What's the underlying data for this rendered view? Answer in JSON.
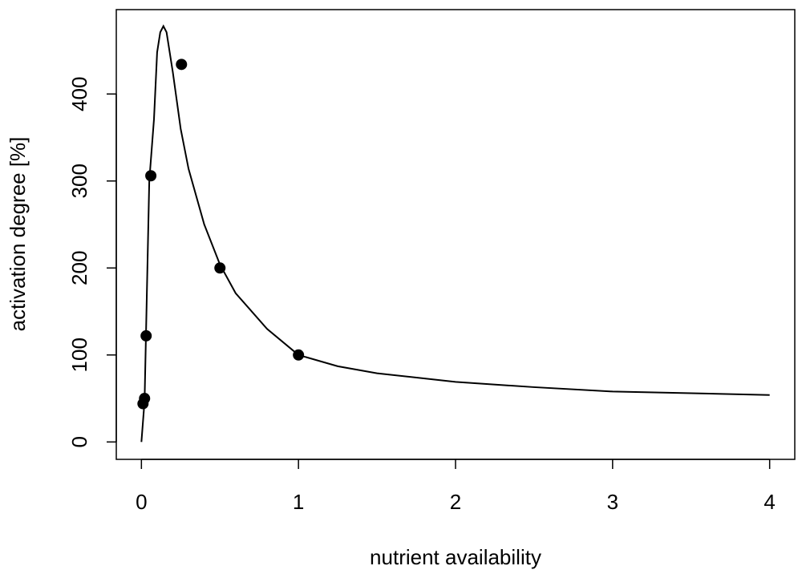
{
  "chart_data": {
    "type": "scatter",
    "x_label": "nutrient availability",
    "y_label": "activation degree [%]",
    "xlim": [
      -0.16,
      4.16
    ],
    "ylim": [
      -20,
      497
    ],
    "xticks": [
      0,
      1,
      2,
      3,
      4
    ],
    "yticks": [
      0,
      100,
      200,
      300,
      400
    ],
    "series": [
      {
        "type": "scatter",
        "color": "#000000",
        "x": [
          0.01,
          0.02,
          0.03,
          0.06,
          0.255,
          0.5,
          1
        ],
        "values": [
          44,
          50,
          122,
          306,
          434,
          200,
          100
        ]
      },
      {
        "type": "line",
        "color": "#000000",
        "x": [
          0,
          0.02,
          0.05,
          0.08,
          0.1,
          0.12,
          0.14,
          0.16,
          0.2,
          0.25,
          0.3,
          0.4,
          0.5,
          0.6,
          0.8,
          1,
          1.25,
          1.5,
          2,
          2.5,
          3,
          3.5,
          4
        ],
        "values": [
          0,
          47,
          300,
          371,
          448,
          471,
          478,
          471,
          425,
          360,
          314,
          250,
          204,
          171,
          130,
          100,
          87,
          79,
          69,
          63,
          58,
          56,
          54
        ]
      }
    ]
  }
}
